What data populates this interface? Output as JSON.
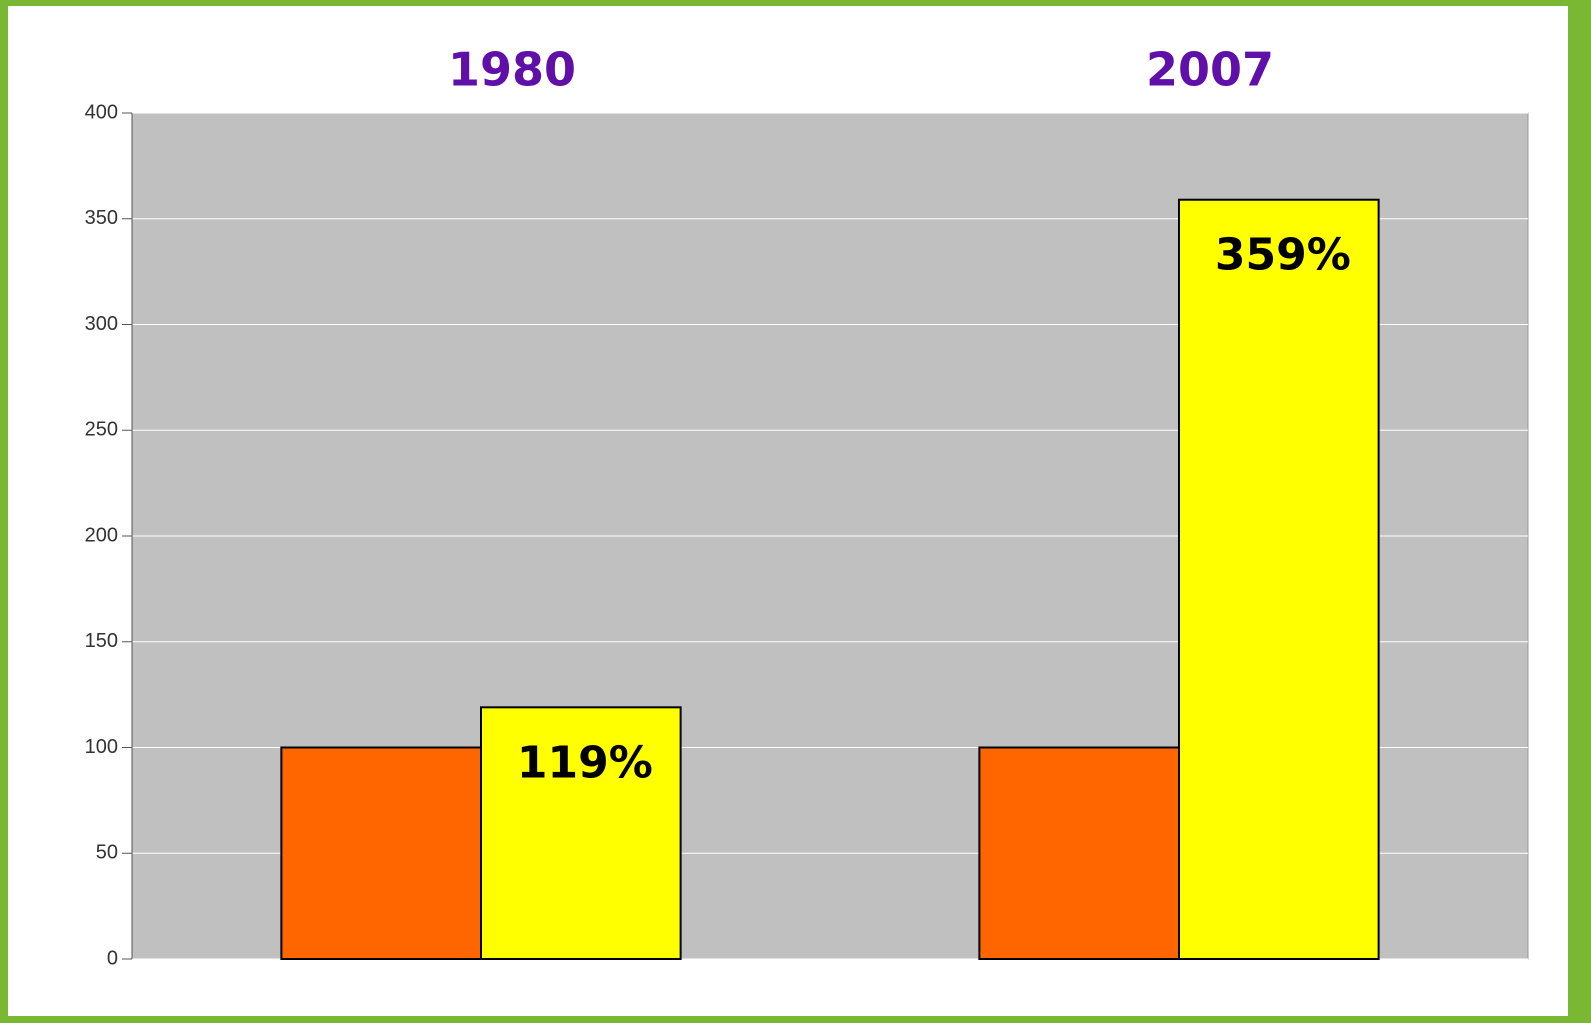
{
  "chart_data": {
    "type": "bar",
    "categories": [
      "1980",
      "2007"
    ],
    "series": [
      {
        "color": "#ff6600",
        "values": [
          100,
          100
        ]
      },
      {
        "color": "#ffff00",
        "values": [
          119,
          359
        ],
        "value_labels": [
          "119%",
          "359%"
        ]
      }
    ],
    "ylim": [
      0,
      400
    ],
    "yticks": [
      0,
      50,
      100,
      150,
      200,
      250,
      300,
      350,
      400
    ],
    "grid": true,
    "grid_color": "#ffffff",
    "plot_background": "#c0c0c0"
  }
}
